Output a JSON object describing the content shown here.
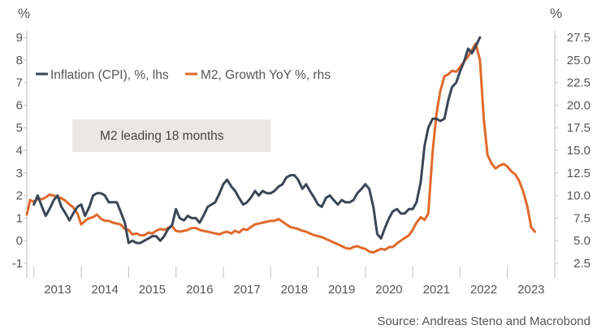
{
  "chart_data": {
    "type": "line",
    "left_unit": "%",
    "right_unit": "%",
    "y_left_ticks": [
      "-1",
      "0",
      "1",
      "2",
      "3",
      "4",
      "5",
      "6",
      "7",
      "8",
      "9"
    ],
    "y_left_range": [
      -1,
      9
    ],
    "y_right_ticks": [
      "2.5",
      "5.0",
      "7.5",
      "10.0",
      "12.5",
      "15.0",
      "17.5",
      "20.0",
      "22.5",
      "25.0",
      "27.5"
    ],
    "y_right_range": [
      2.5,
      27.5
    ],
    "x_range": [
      2012.85,
      2024.0
    ],
    "x_labels": [
      "2013",
      "2014",
      "2015",
      "2016",
      "2017",
      "2018",
      "2019",
      "2020",
      "2021",
      "2022",
      "2023"
    ],
    "annotation": "M2 leading 18 months",
    "source": "Source: Andreas Steno and Macrobond",
    "series": [
      {
        "name": "Inflation (CPI), %, lhs",
        "legend": "Inflation (CPI), %, lhs",
        "axis": "left",
        "color": "#3b4656",
        "points": [
          [
            2013.0,
            1.6
          ],
          [
            2013.08,
            2.0
          ],
          [
            2013.17,
            1.5
          ],
          [
            2013.25,
            1.1
          ],
          [
            2013.33,
            1.4
          ],
          [
            2013.42,
            1.8
          ],
          [
            2013.5,
            2.0
          ],
          [
            2013.58,
            1.5
          ],
          [
            2013.67,
            1.2
          ],
          [
            2013.75,
            0.9
          ],
          [
            2013.83,
            1.2
          ],
          [
            2013.92,
            1.5
          ],
          [
            2014.0,
            1.6
          ],
          [
            2014.08,
            1.1
          ],
          [
            2014.17,
            1.5
          ],
          [
            2014.25,
            2.0
          ],
          [
            2014.33,
            2.1
          ],
          [
            2014.42,
            2.1
          ],
          [
            2014.5,
            2.0
          ],
          [
            2014.58,
            1.7
          ],
          [
            2014.67,
            1.7
          ],
          [
            2014.75,
            1.7
          ],
          [
            2014.83,
            1.3
          ],
          [
            2014.92,
            0.8
          ],
          [
            2015.0,
            -0.1
          ],
          [
            2015.08,
            0.0
          ],
          [
            2015.17,
            -0.1
          ],
          [
            2015.25,
            -0.1
          ],
          [
            2015.33,
            0.0
          ],
          [
            2015.42,
            0.1
          ],
          [
            2015.5,
            0.2
          ],
          [
            2015.58,
            0.2
          ],
          [
            2015.67,
            0.0
          ],
          [
            2015.75,
            0.2
          ],
          [
            2015.83,
            0.5
          ],
          [
            2015.92,
            0.7
          ],
          [
            2016.0,
            1.4
          ],
          [
            2016.08,
            1.0
          ],
          [
            2016.17,
            0.9
          ],
          [
            2016.25,
            1.1
          ],
          [
            2016.33,
            1.0
          ],
          [
            2016.42,
            1.0
          ],
          [
            2016.5,
            0.8
          ],
          [
            2016.58,
            1.1
          ],
          [
            2016.67,
            1.5
          ],
          [
            2016.75,
            1.6
          ],
          [
            2016.83,
            1.7
          ],
          [
            2016.92,
            2.1
          ],
          [
            2017.0,
            2.5
          ],
          [
            2017.08,
            2.7
          ],
          [
            2017.17,
            2.4
          ],
          [
            2017.25,
            2.2
          ],
          [
            2017.33,
            1.9
          ],
          [
            2017.42,
            1.6
          ],
          [
            2017.5,
            1.7
          ],
          [
            2017.58,
            1.9
          ],
          [
            2017.67,
            2.2
          ],
          [
            2017.75,
            2.0
          ],
          [
            2017.83,
            2.2
          ],
          [
            2017.92,
            2.1
          ],
          [
            2018.0,
            2.1
          ],
          [
            2018.08,
            2.2
          ],
          [
            2018.17,
            2.4
          ],
          [
            2018.25,
            2.5
          ],
          [
            2018.33,
            2.8
          ],
          [
            2018.42,
            2.9
          ],
          [
            2018.5,
            2.9
          ],
          [
            2018.58,
            2.7
          ],
          [
            2018.67,
            2.3
          ],
          [
            2018.75,
            2.5
          ],
          [
            2018.83,
            2.2
          ],
          [
            2018.92,
            1.9
          ],
          [
            2019.0,
            1.6
          ],
          [
            2019.08,
            1.5
          ],
          [
            2019.17,
            1.9
          ],
          [
            2019.25,
            2.0
          ],
          [
            2019.33,
            1.8
          ],
          [
            2019.42,
            1.6
          ],
          [
            2019.5,
            1.8
          ],
          [
            2019.58,
            1.7
          ],
          [
            2019.67,
            1.7
          ],
          [
            2019.75,
            1.8
          ],
          [
            2019.83,
            2.1
          ],
          [
            2019.92,
            2.3
          ],
          [
            2020.0,
            2.5
          ],
          [
            2020.08,
            2.3
          ],
          [
            2020.17,
            1.5
          ],
          [
            2020.25,
            0.3
          ],
          [
            2020.33,
            0.1
          ],
          [
            2020.42,
            0.6
          ],
          [
            2020.5,
            1.0
          ],
          [
            2020.58,
            1.3
          ],
          [
            2020.67,
            1.4
          ],
          [
            2020.75,
            1.2
          ],
          [
            2020.83,
            1.2
          ],
          [
            2020.92,
            1.4
          ],
          [
            2021.0,
            1.4
          ],
          [
            2021.08,
            1.7
          ],
          [
            2021.17,
            2.6
          ],
          [
            2021.25,
            4.2
          ],
          [
            2021.33,
            5.0
          ],
          [
            2021.42,
            5.4
          ],
          [
            2021.5,
            5.4
          ],
          [
            2021.58,
            5.3
          ],
          [
            2021.67,
            5.4
          ],
          [
            2021.75,
            6.2
          ],
          [
            2021.83,
            6.8
          ],
          [
            2021.92,
            7.0
          ],
          [
            2022.0,
            7.5
          ],
          [
            2022.08,
            7.9
          ],
          [
            2022.17,
            8.5
          ],
          [
            2022.25,
            8.3
          ],
          [
            2022.33,
            8.6
          ],
          [
            2022.42,
            9.0
          ]
        ]
      },
      {
        "name": "M2, Growth YoY %, rhs",
        "legend": "M2, Growth YoY %, rhs",
        "axis": "right",
        "color": "#e0692b",
        "points": [
          [
            2012.85,
            7.9
          ],
          [
            2012.92,
            9.5
          ],
          [
            2013.0,
            9.3
          ],
          [
            2013.08,
            9.6
          ],
          [
            2013.17,
            9.6
          ],
          [
            2013.25,
            9.8
          ],
          [
            2013.33,
            10.1
          ],
          [
            2013.42,
            10.0
          ],
          [
            2013.5,
            9.8
          ],
          [
            2013.58,
            9.7
          ],
          [
            2013.67,
            9.4
          ],
          [
            2013.75,
            9.0
          ],
          [
            2013.83,
            8.7
          ],
          [
            2013.92,
            8.0
          ],
          [
            2014.0,
            6.8
          ],
          [
            2014.08,
            7.2
          ],
          [
            2014.17,
            7.5
          ],
          [
            2014.25,
            7.6
          ],
          [
            2014.33,
            7.9
          ],
          [
            2014.42,
            7.4
          ],
          [
            2014.5,
            7.2
          ],
          [
            2014.58,
            7.2
          ],
          [
            2014.67,
            7.0
          ],
          [
            2014.75,
            6.9
          ],
          [
            2014.83,
            6.8
          ],
          [
            2014.92,
            6.3
          ],
          [
            2015.0,
            6.2
          ],
          [
            2015.08,
            5.7
          ],
          [
            2015.17,
            5.8
          ],
          [
            2015.25,
            5.6
          ],
          [
            2015.33,
            5.6
          ],
          [
            2015.42,
            5.9
          ],
          [
            2015.5,
            5.8
          ],
          [
            2015.58,
            6.1
          ],
          [
            2015.67,
            6.3
          ],
          [
            2015.75,
            6.2
          ],
          [
            2015.83,
            6.4
          ],
          [
            2015.92,
            6.6
          ],
          [
            2016.0,
            6.1
          ],
          [
            2016.08,
            6.0
          ],
          [
            2016.17,
            6.1
          ],
          [
            2016.25,
            6.2
          ],
          [
            2016.33,
            6.4
          ],
          [
            2016.42,
            6.4
          ],
          [
            2016.5,
            6.2
          ],
          [
            2016.58,
            6.1
          ],
          [
            2016.67,
            6.0
          ],
          [
            2016.75,
            5.9
          ],
          [
            2016.83,
            5.8
          ],
          [
            2016.92,
            5.7
          ],
          [
            2017.0,
            5.9
          ],
          [
            2017.08,
            6.0
          ],
          [
            2017.17,
            5.8
          ],
          [
            2017.25,
            6.1
          ],
          [
            2017.33,
            5.9
          ],
          [
            2017.42,
            6.3
          ],
          [
            2017.5,
            6.2
          ],
          [
            2017.58,
            6.5
          ],
          [
            2017.67,
            6.8
          ],
          [
            2017.75,
            6.9
          ],
          [
            2017.83,
            7.0
          ],
          [
            2017.92,
            7.1
          ],
          [
            2018.0,
            7.2
          ],
          [
            2018.08,
            7.2
          ],
          [
            2018.17,
            7.4
          ],
          [
            2018.25,
            7.1
          ],
          [
            2018.33,
            6.8
          ],
          [
            2018.42,
            6.5
          ],
          [
            2018.5,
            6.4
          ],
          [
            2018.58,
            6.3
          ],
          [
            2018.67,
            6.1
          ],
          [
            2018.75,
            6.0
          ],
          [
            2018.83,
            5.8
          ],
          [
            2018.92,
            5.6
          ],
          [
            2019.0,
            5.5
          ],
          [
            2019.08,
            5.4
          ],
          [
            2019.17,
            5.2
          ],
          [
            2019.25,
            5.0
          ],
          [
            2019.33,
            4.8
          ],
          [
            2019.42,
            4.6
          ],
          [
            2019.5,
            4.4
          ],
          [
            2019.58,
            4.2
          ],
          [
            2019.67,
            4.1
          ],
          [
            2019.75,
            4.3
          ],
          [
            2019.83,
            4.4
          ],
          [
            2019.92,
            4.2
          ],
          [
            2020.0,
            4.1
          ],
          [
            2020.08,
            3.8
          ],
          [
            2020.17,
            3.7
          ],
          [
            2020.25,
            3.9
          ],
          [
            2020.33,
            4.1
          ],
          [
            2020.42,
            4.0
          ],
          [
            2020.5,
            4.3
          ],
          [
            2020.58,
            4.3
          ],
          [
            2020.67,
            4.7
          ],
          [
            2020.75,
            5.0
          ],
          [
            2020.83,
            5.3
          ],
          [
            2020.92,
            5.6
          ],
          [
            2021.0,
            6.2
          ],
          [
            2021.08,
            7.0
          ],
          [
            2021.17,
            7.6
          ],
          [
            2021.25,
            7.3
          ],
          [
            2021.33,
            8.0
          ],
          [
            2021.42,
            14.8
          ],
          [
            2021.5,
            19.0
          ],
          [
            2021.58,
            21.5
          ],
          [
            2021.67,
            23.2
          ],
          [
            2021.75,
            23.4
          ],
          [
            2021.83,
            23.8
          ],
          [
            2021.92,
            23.7
          ],
          [
            2022.0,
            24.2
          ],
          [
            2022.08,
            24.8
          ],
          [
            2022.17,
            25.4
          ],
          [
            2022.25,
            26.1
          ],
          [
            2022.33,
            26.8
          ],
          [
            2022.42,
            25.0
          ],
          [
            2022.5,
            18.5
          ],
          [
            2022.58,
            14.5
          ],
          [
            2022.67,
            13.5
          ],
          [
            2022.75,
            13.0
          ],
          [
            2022.83,
            13.3
          ],
          [
            2022.92,
            13.5
          ],
          [
            2023.0,
            13.2
          ],
          [
            2023.08,
            12.7
          ],
          [
            2023.17,
            12.3
          ],
          [
            2023.25,
            11.6
          ],
          [
            2023.33,
            10.5
          ],
          [
            2023.42,
            8.8
          ],
          [
            2023.5,
            6.5
          ],
          [
            2023.58,
            6.0
          ]
        ]
      }
    ]
  }
}
